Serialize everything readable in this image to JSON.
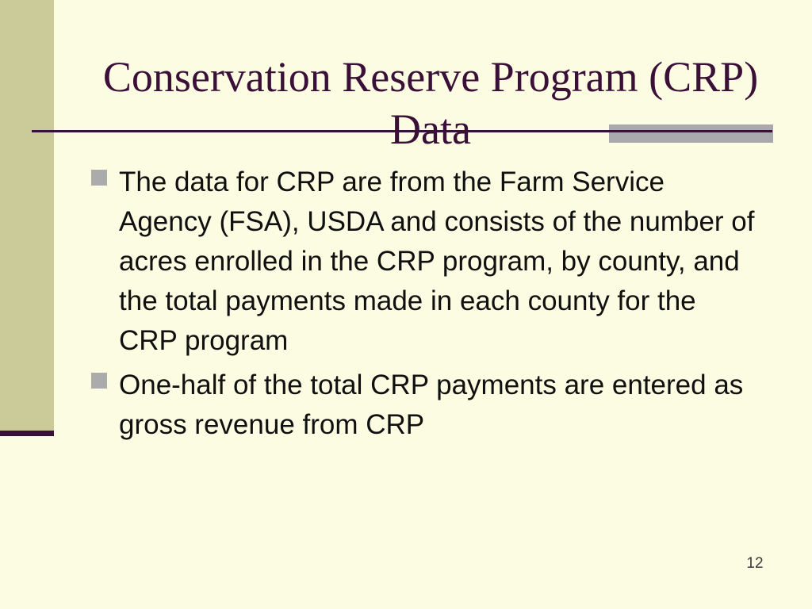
{
  "slide": {
    "title": {
      "line1": "Conservation Reserve Program (CRP)",
      "line2": "Data"
    },
    "bullets": [
      {
        "text": "The data for CRP are from the Farm Service Agency (FSA), USDA and consists of the number of acres enrolled in the CRP program, by county, and the total payments made in each county for the CRP program"
      },
      {
        "text": "One-half of the total CRP payments are entered as gross revenue from CRP"
      }
    ],
    "page_number": "12",
    "colors": {
      "background": "#FCFCE2",
      "sidebar": "#CBCB9A",
      "title_text": "#3B1038",
      "accent_line": "#3B1038",
      "gray_accent": "#A9A9AD",
      "bullet_marker": "#ABABAB",
      "body_text": "#101010"
    }
  }
}
